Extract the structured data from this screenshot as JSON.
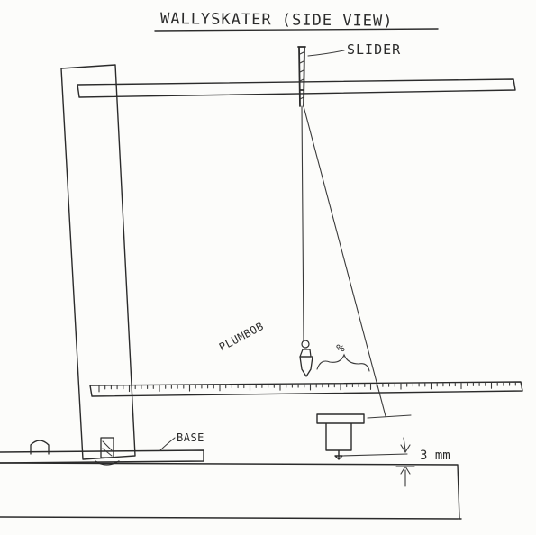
{
  "title": "WALLYSKATER (SIDE VIEW)",
  "labels": {
    "slider": "SLIDER",
    "plumbob": "PLUMBOB",
    "percent": "%",
    "base": "BASE",
    "gap": "3 mm"
  },
  "colors": {
    "paper": "#fcfcfa",
    "ink": "#2b2b2b"
  }
}
